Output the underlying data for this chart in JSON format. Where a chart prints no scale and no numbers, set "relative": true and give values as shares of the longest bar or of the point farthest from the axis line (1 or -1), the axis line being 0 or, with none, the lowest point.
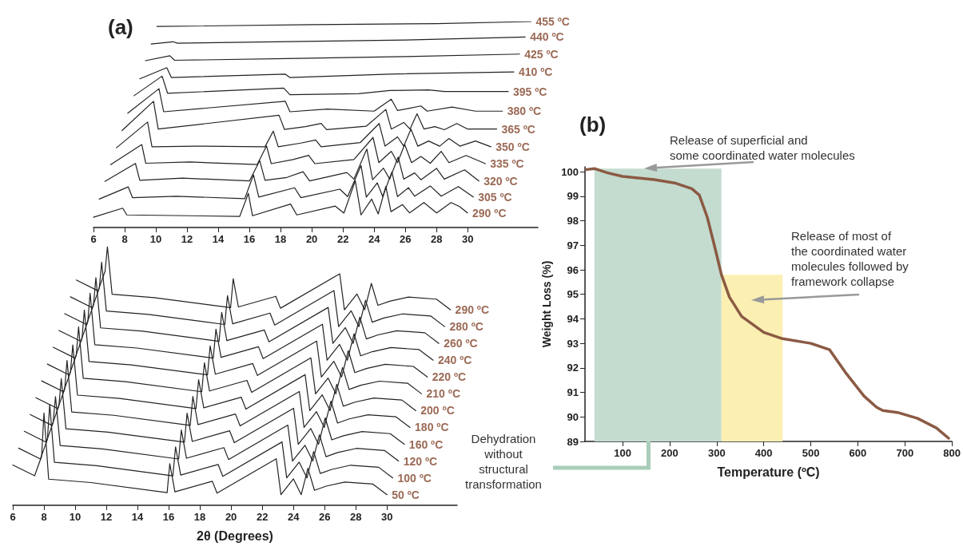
{
  "chart_data": [
    {
      "type": "line",
      "title": "(a)",
      "relative": true,
      "xlim": [
        6,
        34.5
      ],
      "xticks": [
        6,
        8,
        10,
        12,
        14,
        16,
        18,
        20,
        22,
        24,
        26,
        28,
        30
      ],
      "series": [
        {
          "name": "290 ºC",
          "color": "#222222",
          "x": [
            6.0,
            7.87,
            8.14,
            15.38,
            15.93,
            16.2,
            18.64,
            19.04,
            21.51,
            22.06,
            22.79,
            23.16,
            23.84,
            24.26,
            24.75,
            25.08,
            25.82,
            26.27,
            27.19,
            28.01,
            28.93,
            29.48,
            29.99
          ],
          "values": [
            0.05,
            0.094,
            0.061,
            0.054,
            0.166,
            0.057,
            0.114,
            0.061,
            0.104,
            0.07,
            0.227,
            0.061,
            0.138,
            0.066,
            0.199,
            0.077,
            0.111,
            0.071,
            0.121,
            0.071,
            0.121,
            0.102,
            0.071
          ]
        },
        {
          "name": "305 ºC",
          "color": "#222222",
          "x": [
            6.37,
            8.23,
            8.5,
            11.3,
            15.7,
            16.26,
            16.6,
            18.9,
            19.3,
            21.8,
            22.3,
            23.16,
            23.5,
            24.2,
            24.55,
            25.14,
            25.5,
            26.2,
            26.6,
            27.6,
            28.3,
            29.4,
            30.36
          ],
          "values": [
            0.138,
            0.197,
            0.145,
            0.152,
            0.14,
            0.256,
            0.148,
            0.193,
            0.145,
            0.186,
            0.15,
            0.301,
            0.148,
            0.217,
            0.15,
            0.27,
            0.15,
            0.193,
            0.152,
            0.202,
            0.152,
            0.199,
            0.148
          ]
        },
        {
          "name": "320 ºC",
          "color": "#222222",
          "x": [
            6.73,
            8.69,
            8.97,
            11.7,
            16.0,
            16.66,
            17.0,
            18.4,
            19.44,
            19.86,
            22.25,
            22.7,
            23.53,
            23.9,
            24.6,
            25.0,
            25.54,
            25.9,
            26.6,
            27.0,
            28.0,
            28.5,
            29.8,
            30.72
          ],
          "values": [
            0.224,
            0.311,
            0.229,
            0.24,
            0.226,
            0.325,
            0.229,
            0.243,
            0.271,
            0.226,
            0.267,
            0.235,
            0.381,
            0.232,
            0.288,
            0.235,
            0.342,
            0.235,
            0.265,
            0.232,
            0.287,
            0.235,
            0.28,
            0.226
          ]
        },
        {
          "name": "335 ºC",
          "color": "#222222",
          "x": [
            7.1,
            9.1,
            9.35,
            12.2,
            16.5,
            17.1,
            17.4,
            18.8,
            19.8,
            20.2,
            22.7,
            23.93,
            24.3,
            25.1,
            25.5,
            25.96,
            26.4,
            27.0,
            27.6,
            28.3,
            28.8,
            29.9,
            31.13
          ],
          "values": [
            0.305,
            0.403,
            0.312,
            0.318,
            0.306,
            0.396,
            0.31,
            0.33,
            0.35,
            0.31,
            0.33,
            0.437,
            0.315,
            0.37,
            0.315,
            0.403,
            0.315,
            0.345,
            0.312,
            0.37,
            0.315,
            0.35,
            0.31
          ]
        },
        {
          "name": "350 ºC",
          "color": "#222222",
          "x": [
            7.47,
            9.47,
            9.75,
            12.5,
            17.0,
            17.53,
            17.85,
            19.3,
            20.25,
            20.6,
            23.1,
            24.32,
            24.7,
            25.5,
            25.9,
            26.36,
            26.8,
            27.5,
            28.2,
            28.8,
            29.5,
            30.5,
            31.49
          ],
          "values": [
            0.387,
            0.512,
            0.392,
            0.395,
            0.392,
            0.468,
            0.392,
            0.41,
            0.425,
            0.392,
            0.412,
            0.505,
            0.395,
            0.44,
            0.395,
            0.478,
            0.395,
            0.42,
            0.395,
            0.432,
            0.395,
            0.42,
            0.392
          ]
        },
        {
          "name": "365 ºC",
          "color": "#222222",
          "x": [
            7.83,
            9.85,
            10.15,
            17.9,
            18.25,
            19.6,
            20.6,
            20.95,
            23.5,
            24.75,
            25.1,
            25.9,
            26.3,
            26.75,
            27.2,
            27.9,
            28.5,
            29.3,
            30.0,
            31.86
          ],
          "values": [
            0.471,
            0.613,
            0.478,
            0.545,
            0.476,
            0.49,
            0.505,
            0.475,
            0.492,
            0.573,
            0.478,
            0.51,
            0.478,
            0.552,
            0.478,
            0.49,
            0.475,
            0.505,
            0.478,
            0.478
          ]
        },
        {
          "name": "380 ºC",
          "color": "#222222",
          "x": [
            8.2,
            10.2,
            10.5,
            18.3,
            18.6,
            21.0,
            24.0,
            25.1,
            25.5,
            26.2,
            27.0,
            27.4,
            29.0,
            30.5,
            32.23
          ],
          "values": [
            0.555,
            0.674,
            0.562,
            0.613,
            0.562,
            0.575,
            0.565,
            0.623,
            0.568,
            0.578,
            0.59,
            0.565,
            0.585,
            0.565,
            0.565
          ]
        },
        {
          "name": "395 ºC",
          "color": "#222222",
          "x": [
            8.6,
            10.4,
            10.75,
            18.2,
            18.6,
            23.0,
            25.0,
            27.5,
            28.5,
            32.6
          ],
          "values": [
            0.64,
            0.735,
            0.652,
            0.677,
            0.645,
            0.65,
            0.665,
            0.668,
            0.66,
            0.66
          ]
        },
        {
          "name": "410 ºC",
          "color": "#222222",
          "x": [
            8.97,
            10.7,
            11.0,
            18.3,
            18.6,
            25.0,
            32.96
          ],
          "values": [
            0.722,
            0.776,
            0.728,
            0.745,
            0.728,
            0.745,
            0.755
          ]
        },
        {
          "name": "425 ºC",
          "color": "#222222",
          "x": [
            9.33,
            10.9,
            11.2,
            18.4,
            26.0,
            33.33
          ],
          "values": [
            0.81,
            0.834,
            0.812,
            0.82,
            0.83,
            0.842
          ]
        },
        {
          "name": "440 ºC",
          "color": "#222222",
          "x": [
            9.7,
            11.1,
            11.4,
            26.0,
            33.69
          ],
          "values": [
            0.891,
            0.902,
            0.895,
            0.91,
            0.925
          ]
        },
        {
          "name": "455 ºC",
          "color": "#222222",
          "x": [
            10.07,
            20.0,
            28.0,
            34.06
          ],
          "values": [
            0.976,
            0.985,
            0.99,
            1.0
          ]
        }
      ]
    },
    {
      "type": "line",
      "xlabel": "2θ (Degrees)",
      "relative": true,
      "xlim": [
        6,
        34.5
      ],
      "xticks": [
        6,
        8,
        10,
        12,
        14,
        16,
        18,
        20,
        22,
        24,
        26,
        28,
        30
      ],
      "series": [
        {
          "name": "50 ºC",
          "color": "#222222",
          "x": [
            6.0,
            7.4,
            7.85,
            8.0,
            8.3,
            11.0,
            15.9,
            16.07,
            16.4,
            18.8,
            19.1,
            22.9,
            23.2,
            24.0,
            24.5,
            24.93,
            25.35,
            26.1,
            27.3,
            29.1,
            30.0
          ],
          "values": [
            0.156,
            0.114,
            0.19,
            0.357,
            0.101,
            0.088,
            0.049,
            0.161,
            0.052,
            0.093,
            0.047,
            0.18,
            0.041,
            0.102,
            0.041,
            0.143,
            0.058,
            0.074,
            0.09,
            0.082,
            0.041
          ]
        },
        {
          "name": "100 ºC",
          "color": "#222222",
          "x": [
            6.37,
            7.77,
            8.22,
            8.37,
            8.67,
            11.37,
            16.27,
            16.44,
            16.77,
            19.17,
            19.47,
            23.27,
            23.57,
            24.37,
            24.87,
            25.3,
            25.72,
            26.47,
            27.67,
            29.47,
            30.37
          ],
          "values": [
            0.221,
            0.179,
            0.255,
            0.39,
            0.166,
            0.153,
            0.114,
            0.226,
            0.117,
            0.158,
            0.112,
            0.245,
            0.106,
            0.167,
            0.106,
            0.208,
            0.123,
            0.139,
            0.155,
            0.147,
            0.106
          ]
        },
        {
          "name": "120 ºC",
          "color": "#222222",
          "x": [
            6.74,
            8.14,
            8.59,
            8.74,
            9.04,
            11.74,
            16.64,
            16.81,
            17.14,
            19.54,
            19.84,
            23.64,
            23.94,
            24.74,
            25.24,
            25.67,
            26.09,
            26.84,
            28.04,
            29.84,
            30.74
          ],
          "values": [
            0.286,
            0.244,
            0.32,
            0.42,
            0.231,
            0.218,
            0.179,
            0.291,
            0.182,
            0.223,
            0.177,
            0.31,
            0.171,
            0.232,
            0.171,
            0.273,
            0.188,
            0.204,
            0.22,
            0.212,
            0.171
          ]
        },
        {
          "name": "160 ºC",
          "color": "#222222",
          "x": [
            7.11,
            8.51,
            8.96,
            9.11,
            9.41,
            12.11,
            17.01,
            17.18,
            17.51,
            19.91,
            20.21,
            24.01,
            24.31,
            25.11,
            25.61,
            26.04,
            26.46,
            27.21,
            28.41,
            30.21,
            31.11
          ],
          "values": [
            0.351,
            0.309,
            0.385,
            0.49,
            0.296,
            0.283,
            0.244,
            0.356,
            0.247,
            0.288,
            0.242,
            0.375,
            0.236,
            0.297,
            0.236,
            0.338,
            0.253,
            0.269,
            0.285,
            0.277,
            0.236
          ]
        },
        {
          "name": "180 ºC",
          "color": "#222222",
          "x": [
            7.48,
            8.88,
            9.33,
            9.48,
            9.78,
            12.48,
            17.38,
            17.55,
            17.88,
            20.28,
            20.58,
            24.38,
            24.68,
            25.48,
            25.98,
            26.41,
            26.83,
            27.58,
            28.78,
            30.58,
            31.48
          ],
          "values": [
            0.416,
            0.374,
            0.45,
            0.56,
            0.361,
            0.348,
            0.309,
            0.421,
            0.312,
            0.353,
            0.307,
            0.44,
            0.301,
            0.362,
            0.301,
            0.403,
            0.318,
            0.334,
            0.35,
            0.342,
            0.301
          ]
        },
        {
          "name": "200 ºC",
          "color": "#222222",
          "x": [
            7.85,
            9.25,
            9.7,
            9.85,
            10.15,
            12.85,
            17.75,
            17.92,
            18.25,
            20.65,
            20.95,
            24.75,
            25.05,
            25.85,
            26.35,
            26.78,
            27.2,
            27.95,
            29.15,
            30.95,
            31.85
          ],
          "values": [
            0.481,
            0.439,
            0.515,
            0.62,
            0.426,
            0.413,
            0.374,
            0.486,
            0.377,
            0.418,
            0.372,
            0.505,
            0.366,
            0.427,
            0.366,
            0.468,
            0.383,
            0.399,
            0.415,
            0.407,
            0.366
          ]
        },
        {
          "name": "210 ºC",
          "color": "#222222",
          "x": [
            8.22,
            9.62,
            10.07,
            10.22,
            10.52,
            13.22,
            18.12,
            18.29,
            18.62,
            21.02,
            21.32,
            25.12,
            25.42,
            26.22,
            26.72,
            27.15,
            27.57,
            28.32,
            29.52,
            31.32,
            32.22
          ],
          "values": [
            0.546,
            0.504,
            0.58,
            0.69,
            0.491,
            0.478,
            0.439,
            0.551,
            0.442,
            0.483,
            0.437,
            0.57,
            0.431,
            0.492,
            0.431,
            0.533,
            0.448,
            0.464,
            0.48,
            0.472,
            0.431
          ]
        },
        {
          "name": "220 ºC",
          "color": "#222222",
          "x": [
            8.59,
            9.99,
            10.44,
            10.59,
            10.89,
            13.59,
            18.49,
            18.66,
            18.99,
            21.39,
            21.69,
            25.49,
            25.79,
            26.59,
            27.09,
            27.52,
            27.94,
            28.69,
            29.89,
            31.69,
            32.59
          ],
          "values": [
            0.611,
            0.569,
            0.645,
            0.755,
            0.556,
            0.543,
            0.504,
            0.616,
            0.507,
            0.548,
            0.502,
            0.635,
            0.496,
            0.557,
            0.496,
            0.598,
            0.513,
            0.529,
            0.545,
            0.537,
            0.496
          ]
        },
        {
          "name": "240 ºC",
          "color": "#222222",
          "x": [
            8.96,
            10.36,
            10.81,
            10.96,
            11.26,
            13.96,
            18.86,
            19.03,
            19.36,
            21.76,
            22.06,
            25.86,
            26.16,
            26.96,
            27.46,
            27.89,
            28.31,
            29.06,
            30.26,
            32.06,
            32.96
          ],
          "values": [
            0.676,
            0.634,
            0.71,
            0.82,
            0.621,
            0.608,
            0.569,
            0.681,
            0.572,
            0.613,
            0.567,
            0.7,
            0.561,
            0.622,
            0.561,
            0.663,
            0.578,
            0.594,
            0.61,
            0.602,
            0.561
          ]
        },
        {
          "name": "260 ºC",
          "color": "#222222",
          "x": [
            9.33,
            10.73,
            11.18,
            11.33,
            11.63,
            14.33,
            19.23,
            19.4,
            19.73,
            22.13,
            22.43,
            26.23,
            26.53,
            27.33,
            27.83,
            28.26,
            28.68,
            29.43,
            30.63,
            32.43,
            33.33
          ],
          "values": [
            0.741,
            0.699,
            0.775,
            0.88,
            0.686,
            0.673,
            0.634,
            0.746,
            0.637,
            0.678,
            0.632,
            0.765,
            0.626,
            0.687,
            0.626,
            0.728,
            0.643,
            0.659,
            0.675,
            0.667,
            0.626
          ]
        },
        {
          "name": "280 ºC",
          "color": "#222222",
          "x": [
            9.7,
            11.1,
            11.55,
            11.7,
            12.0,
            14.7,
            19.6,
            19.77,
            20.1,
            22.5,
            22.8,
            26.6,
            26.9,
            27.7,
            28.2,
            28.63,
            29.05,
            29.8,
            31.0,
            32.8,
            33.7
          ],
          "values": [
            0.806,
            0.764,
            0.84,
            0.94,
            0.751,
            0.738,
            0.699,
            0.811,
            0.702,
            0.743,
            0.697,
            0.83,
            0.691,
            0.752,
            0.691,
            0.793,
            0.708,
            0.724,
            0.74,
            0.732,
            0.691
          ]
        },
        {
          "name": "290 ºC",
          "color": "#222222",
          "x": [
            10.07,
            11.47,
            11.92,
            12.07,
            12.37,
            15.07,
            19.97,
            20.14,
            20.47,
            22.87,
            23.17,
            26.97,
            27.27,
            28.07,
            28.57,
            29.0,
            29.42,
            30.17,
            31.37,
            33.17,
            34.07
          ],
          "values": [
            0.871,
            0.829,
            0.905,
            1.0,
            0.816,
            0.803,
            0.764,
            0.876,
            0.767,
            0.808,
            0.762,
            0.895,
            0.756,
            0.817,
            0.756,
            0.858,
            0.773,
            0.789,
            0.805,
            0.797,
            0.756
          ]
        }
      ]
    },
    {
      "type": "line",
      "title": "(b)",
      "xlabel": "Temperature (ºC)",
      "ylabel": "Weight Loss (%)",
      "xlim": [
        20,
        800
      ],
      "xticks": [
        100,
        200,
        300,
        400,
        500,
        600,
        700,
        800
      ],
      "ylim": [
        89,
        100.2
      ],
      "yticks": [
        89,
        90,
        91,
        92,
        93,
        94,
        95,
        96,
        97,
        98,
        99,
        100
      ],
      "series": [
        {
          "color": "#8b5a44",
          "x": [
            23,
            40,
            67,
            100,
            167,
            213,
            247,
            263,
            280,
            297,
            310,
            327,
            353,
            400,
            440,
            500,
            540,
            573,
            613,
            640,
            653,
            687,
            727,
            767,
            793
          ],
          "values": [
            100.09,
            100.13,
            99.96,
            99.81,
            99.68,
            99.53,
            99.31,
            99.05,
            98.14,
            96.84,
            95.8,
            94.89,
            94.1,
            93.45,
            93.19,
            93.0,
            92.74,
            91.83,
            90.85,
            90.39,
            90.26,
            90.17,
            89.94,
            89.55,
            89.13
          ]
        }
      ],
      "bands": [
        {
          "axis": "x",
          "from": 40,
          "to": 310,
          "color": "#c3dccf"
        },
        {
          "axis": "x",
          "from": 310,
          "to": 440,
          "color": "#fbefb2"
        }
      ],
      "annotations": [
        "Release of superficial and\nsome coordinated water molecules",
        "Release of most of\nthe coordinated water\nmolecules followed by\nframework collapse",
        "Dehydration\nwithout\nstructural\ntransformation"
      ]
    }
  ]
}
